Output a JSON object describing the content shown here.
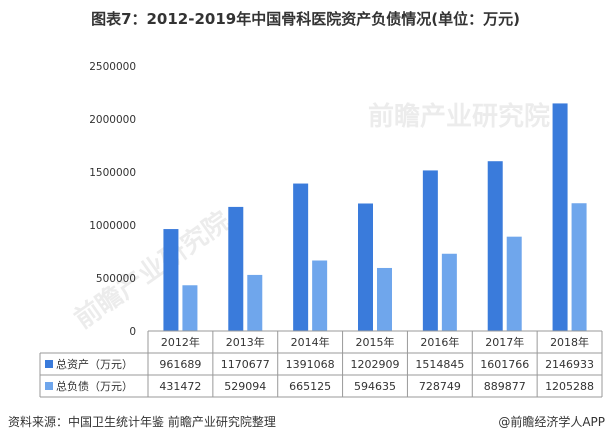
{
  "title": "图表7：2012-2019年中国骨科医院资产负债情况(单位：万元)",
  "source": "资料来源：中国卫生统计年鉴 前瞻产业研究院整理",
  "brand": "@前瞻经济学人APP",
  "watermark": "前瞻产业研究院",
  "colors": {
    "series1": "#3A7BDB",
    "series2": "#6FA6EC"
  },
  "chart_data": {
    "type": "bar",
    "title": "图表7：2012-2019年中国骨科医院资产负债情况(单位：万元)",
    "categories": [
      "2012年",
      "2013年",
      "2014年",
      "2015年",
      "2016年",
      "2017年",
      "2018年"
    ],
    "series": [
      {
        "name": "总资产（万元）",
        "values": [
          961689,
          1170677,
          1391068,
          1202909,
          1514845,
          1601766,
          2146933
        ]
      },
      {
        "name": "总负债（万元）",
        "values": [
          431472,
          529094,
          665125,
          594635,
          728749,
          889877,
          1205288
        ]
      }
    ],
    "yticks": [
      "0",
      "500000",
      "1000000",
      "1500000",
      "2000000",
      "2500000"
    ],
    "ylim": [
      0,
      2500000
    ],
    "grid": false,
    "legend": "data-table"
  }
}
